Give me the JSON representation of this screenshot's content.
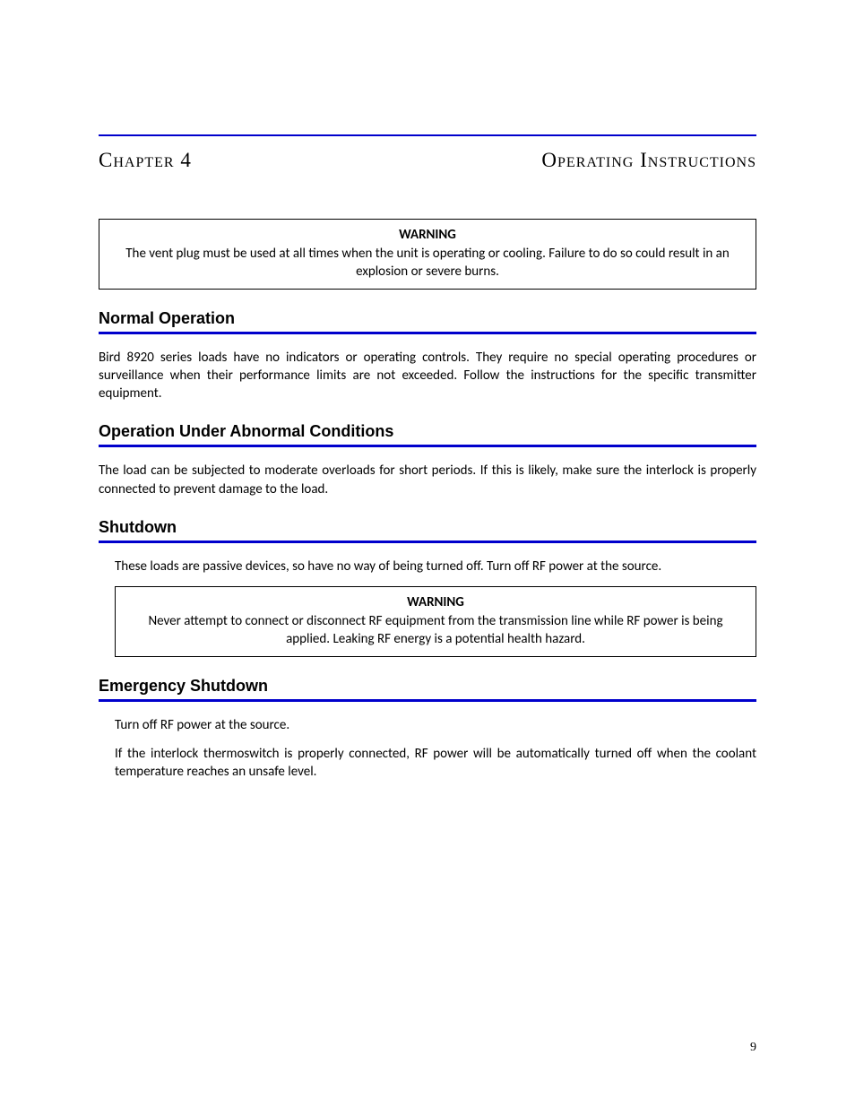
{
  "header": {
    "chapter_label": "Chapter 4",
    "chapter_title": "Operating Instructions"
  },
  "warning1": {
    "label": "WARNING",
    "text": "The vent plug must be used at all times when the unit is operating or cooling. Failure to do so could result in an explosion or severe burns."
  },
  "sections": {
    "normal_operation": {
      "heading": "Normal Operation",
      "body": "Bird 8920 series loads have no indicators or operating controls. They require no special operating procedures or surveillance when their performance limits are not exceeded. Follow the instructions for the specific transmitter equipment."
    },
    "abnormal": {
      "heading": "Operation Under Abnormal Conditions",
      "body": "The load can be subjected to moderate overloads for short periods. If this is likely, make sure the interlock is properly connected to prevent damage to the load."
    },
    "shutdown": {
      "heading": "Shutdown",
      "body": "These loads are passive devices, so have no way of being turned off. Turn off RF power at the source."
    },
    "emergency": {
      "heading": "Emergency Shutdown",
      "body1": "Turn off RF power at the source.",
      "body2": "If the interlock thermoswitch is properly connected, RF power will be automatically turned off when the coolant temperature reaches an unsafe level."
    }
  },
  "warning2": {
    "label": "WARNING",
    "text": "Never attempt to connect or disconnect RF equipment from the transmission line while RF power is being applied. Leaking RF energy is a potential health hazard."
  },
  "page_number": "9",
  "colors": {
    "rule_blue": "#0000cc",
    "text": "#000000",
    "background": "#ffffff"
  }
}
